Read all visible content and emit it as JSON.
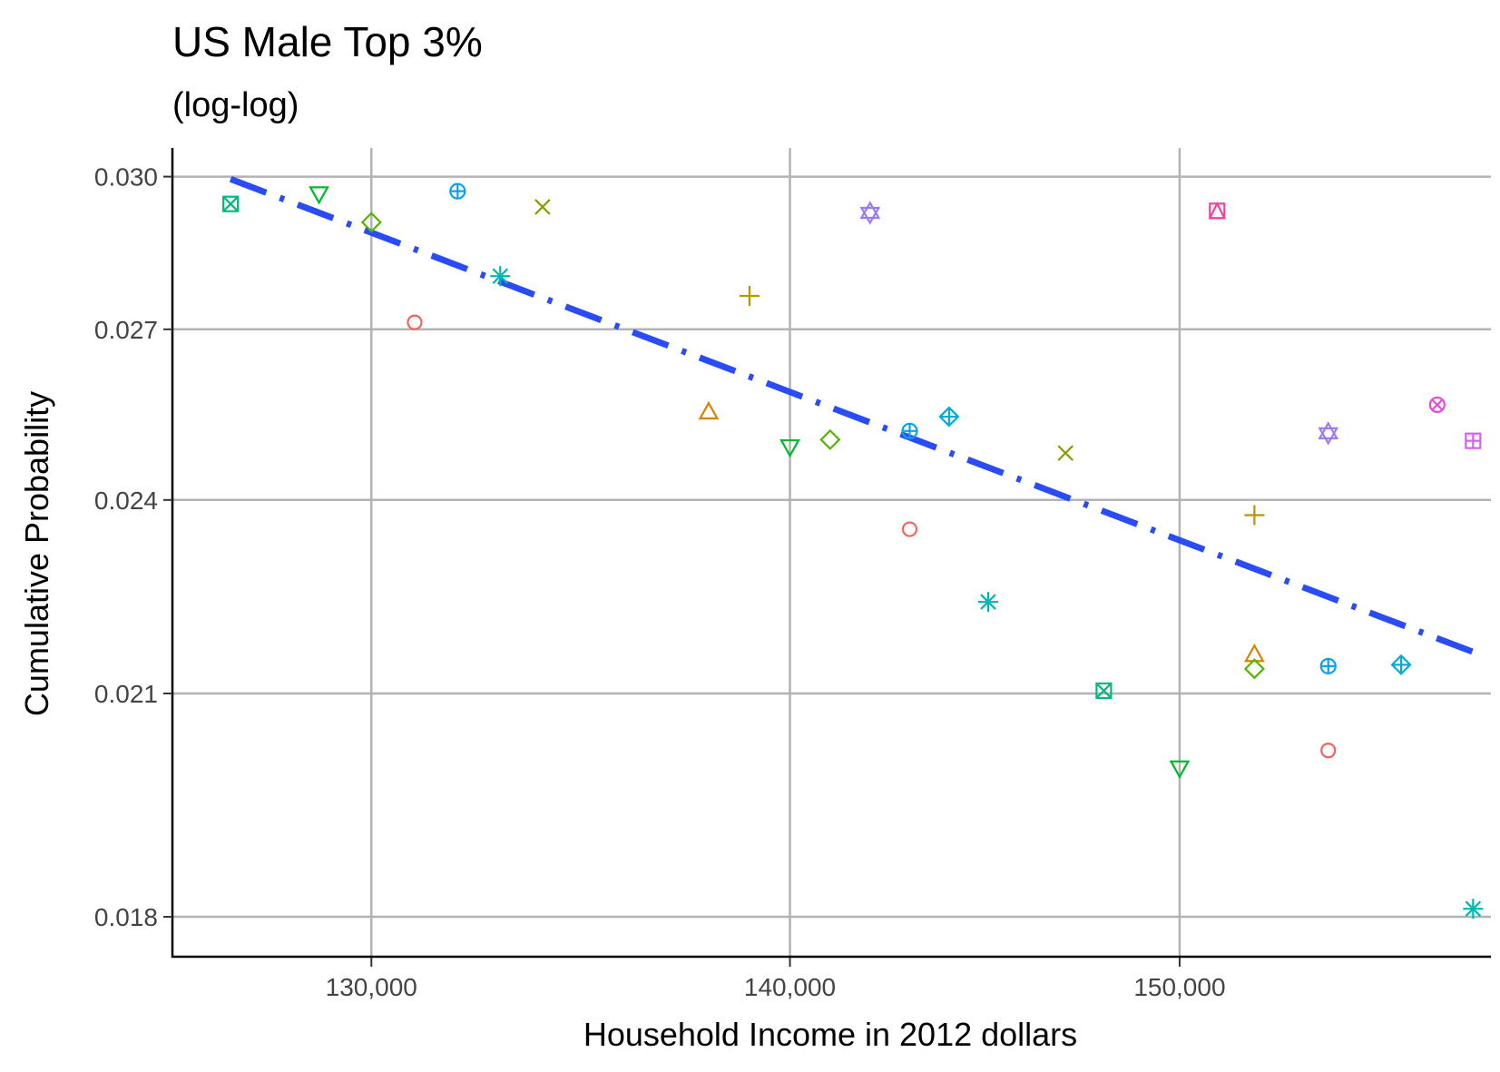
{
  "chart_data": {
    "type": "scatter",
    "title": "US Male Top 3%",
    "subtitle": "(log-log)",
    "xlabel": "Household Income in 2012 dollars",
    "ylabel": "Cumulative Probability",
    "x_scale": "log",
    "y_scale": "log",
    "xlim": [
      125500,
      158500
    ],
    "ylim": [
      0.0175,
      0.0306
    ],
    "x_ticks": [
      130000,
      140000,
      150000
    ],
    "x_tick_labels": [
      "130,000",
      "140,000",
      "150,000"
    ],
    "y_ticks": [
      0.018,
      0.021,
      0.024,
      0.027,
      0.03
    ],
    "y_tick_labels": [
      "0.018",
      "0.021",
      "0.024",
      "0.027",
      "0.030"
    ],
    "grid": true,
    "legend": "none",
    "points": [
      {
        "x": 126800,
        "y": 0.02944,
        "shape": "square-x",
        "color": "#00ba7c"
      },
      {
        "x": 128800,
        "y": 0.02965,
        "shape": "triangle-down",
        "color": "#00b933"
      },
      {
        "x": 130000,
        "y": 0.02907,
        "shape": "diamond",
        "color": "#53b400"
      },
      {
        "x": 131000,
        "y": 0.02713,
        "shape": "circle",
        "color": "#f0665a"
      },
      {
        "x": 132000,
        "y": 0.0297,
        "shape": "circle-plus",
        "color": "#0aa1f0"
      },
      {
        "x": 133000,
        "y": 0.02801,
        "shape": "asterisk",
        "color": "#00b8b0"
      },
      {
        "x": 134000,
        "y": 0.02938,
        "shape": "cross",
        "color": "#8a9a00"
      },
      {
        "x": 138000,
        "y": 0.0255,
        "shape": "triangle-up",
        "color": "#d98200"
      },
      {
        "x": 139000,
        "y": 0.02763,
        "shape": "plus",
        "color": "#b89400"
      },
      {
        "x": 140000,
        "y": 0.0249,
        "shape": "triangle-down",
        "color": "#00b933"
      },
      {
        "x": 141000,
        "y": 0.02502,
        "shape": "diamond",
        "color": "#53b400"
      },
      {
        "x": 142000,
        "y": 0.02926,
        "shape": "star-of-david",
        "color": "#9b7af5"
      },
      {
        "x": 143000,
        "y": 0.02352,
        "shape": "circle",
        "color": "#f0665a"
      },
      {
        "x": 143000,
        "y": 0.02517,
        "shape": "circle-plus",
        "color": "#0aa1f0"
      },
      {
        "x": 144000,
        "y": 0.02542,
        "shape": "diamond-plus",
        "color": "#00abd9"
      },
      {
        "x": 145000,
        "y": 0.02237,
        "shape": "asterisk",
        "color": "#00b8b0"
      },
      {
        "x": 147000,
        "y": 0.02479,
        "shape": "cross",
        "color": "#8a9a00"
      },
      {
        "x": 148000,
        "y": 0.02104,
        "shape": "square-x",
        "color": "#00ba7c"
      },
      {
        "x": 150000,
        "y": 0.01995,
        "shape": "triangle-down",
        "color": "#00b933"
      },
      {
        "x": 151000,
        "y": 0.0293,
        "shape": "square-triangle",
        "color": "#f1449b"
      },
      {
        "x": 152000,
        "y": 0.02375,
        "shape": "plus",
        "color": "#b89400"
      },
      {
        "x": 152000,
        "y": 0.02157,
        "shape": "triangle-up",
        "color": "#d98200"
      },
      {
        "x": 152000,
        "y": 0.02136,
        "shape": "diamond",
        "color": "#53b400"
      },
      {
        "x": 154000,
        "y": 0.02019,
        "shape": "circle",
        "color": "#f0665a"
      },
      {
        "x": 154000,
        "y": 0.0214,
        "shape": "circle-plus",
        "color": "#0aa1f0"
      },
      {
        "x": 154000,
        "y": 0.02513,
        "shape": "star-of-david",
        "color": "#9b7af5"
      },
      {
        "x": 156000,
        "y": 0.02142,
        "shape": "diamond-plus",
        "color": "#00abd9"
      },
      {
        "x": 157000,
        "y": 0.02563,
        "shape": "circle-x",
        "color": "#e64bd6"
      },
      {
        "x": 158000,
        "y": 0.025,
        "shape": "square-plus",
        "color": "#d560f0"
      },
      {
        "x": 158000,
        "y": 0.0181,
        "shape": "asterisk",
        "color": "#00b8b0"
      }
    ],
    "fit_line": {
      "style": "dot-dash",
      "color": "#2a4cf7",
      "x": [
        126800,
        158000
      ],
      "y": [
        0.02995,
        0.02161
      ]
    }
  }
}
